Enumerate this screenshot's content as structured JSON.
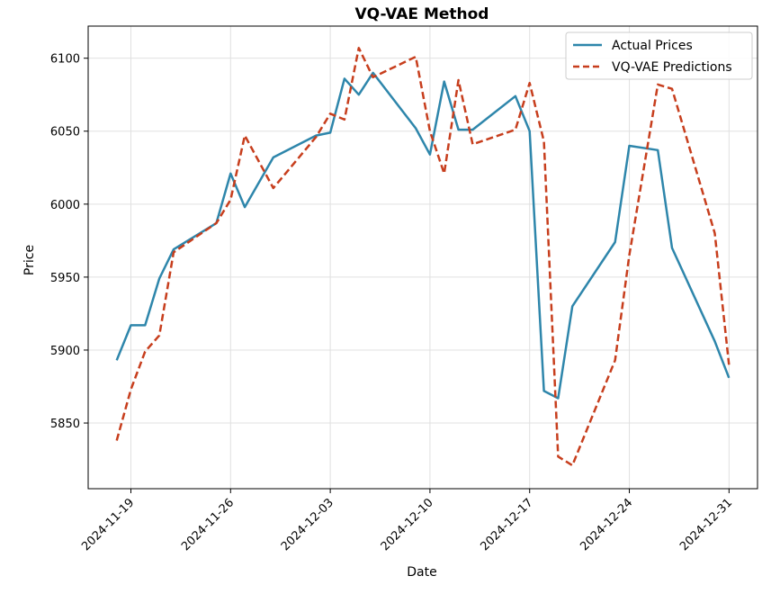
{
  "chart_data": {
    "type": "line",
    "title": "VQ-VAE Method",
    "xlabel": "Date",
    "ylabel": "Price",
    "grid": true,
    "legend": {
      "position": "top-right",
      "entries": [
        {
          "label": "Actual Prices",
          "style": "solid",
          "color": "#2e86ab"
        },
        {
          "label": "VQ-VAE Predictions",
          "style": "dashed",
          "color": "#c73e1d"
        }
      ]
    },
    "xlim": [
      "2024-11-16",
      "2025-01-02"
    ],
    "ylim": [
      5805,
      6122
    ],
    "x_ticks": [
      "2024-11-19",
      "2024-11-26",
      "2024-12-03",
      "2024-12-10",
      "2024-12-17",
      "2024-12-24",
      "2024-12-31"
    ],
    "y_ticks": [
      5850,
      5900,
      5950,
      6000,
      6050,
      6100
    ],
    "x": [
      "2024-11-18",
      "2024-11-19",
      "2024-11-20",
      "2024-11-21",
      "2024-11-22",
      "2024-11-25",
      "2024-11-26",
      "2024-11-27",
      "2024-11-29",
      "2024-12-02",
      "2024-12-03",
      "2024-12-04",
      "2024-12-05",
      "2024-12-06",
      "2024-12-09",
      "2024-12-10",
      "2024-12-11",
      "2024-12-12",
      "2024-12-13",
      "2024-12-16",
      "2024-12-17",
      "2024-12-18",
      "2024-12-19",
      "2024-12-20",
      "2024-12-23",
      "2024-12-24",
      "2024-12-26",
      "2024-12-27",
      "2024-12-30",
      "2024-12-31"
    ],
    "series": [
      {
        "name": "Actual Prices",
        "color": "#2e86ab",
        "style": "solid",
        "values": [
          5893,
          5917,
          5917,
          5949,
          5969,
          5987,
          6021,
          5998,
          6032,
          6047,
          6049,
          6086,
          6075,
          6090,
          6052,
          6034,
          6084,
          6051,
          6051,
          6074,
          6050,
          5872,
          5867,
          5930,
          5974,
          6040,
          6037,
          5970,
          5906,
          5881
        ]
      },
      {
        "name": "VQ-VAE Predictions",
        "color": "#c73e1d",
        "style": "dashed",
        "values": [
          5838,
          5873,
          5899,
          5910,
          5967,
          5987,
          6003,
          6047,
          6011,
          6046,
          6062,
          6058,
          6107,
          6087,
          6101,
          6050,
          6021,
          6085,
          6041,
          6051,
          6083,
          6043,
          5827,
          5821,
          5893,
          5965,
          6082,
          6079,
          5980,
          5890
        ]
      }
    ]
  }
}
